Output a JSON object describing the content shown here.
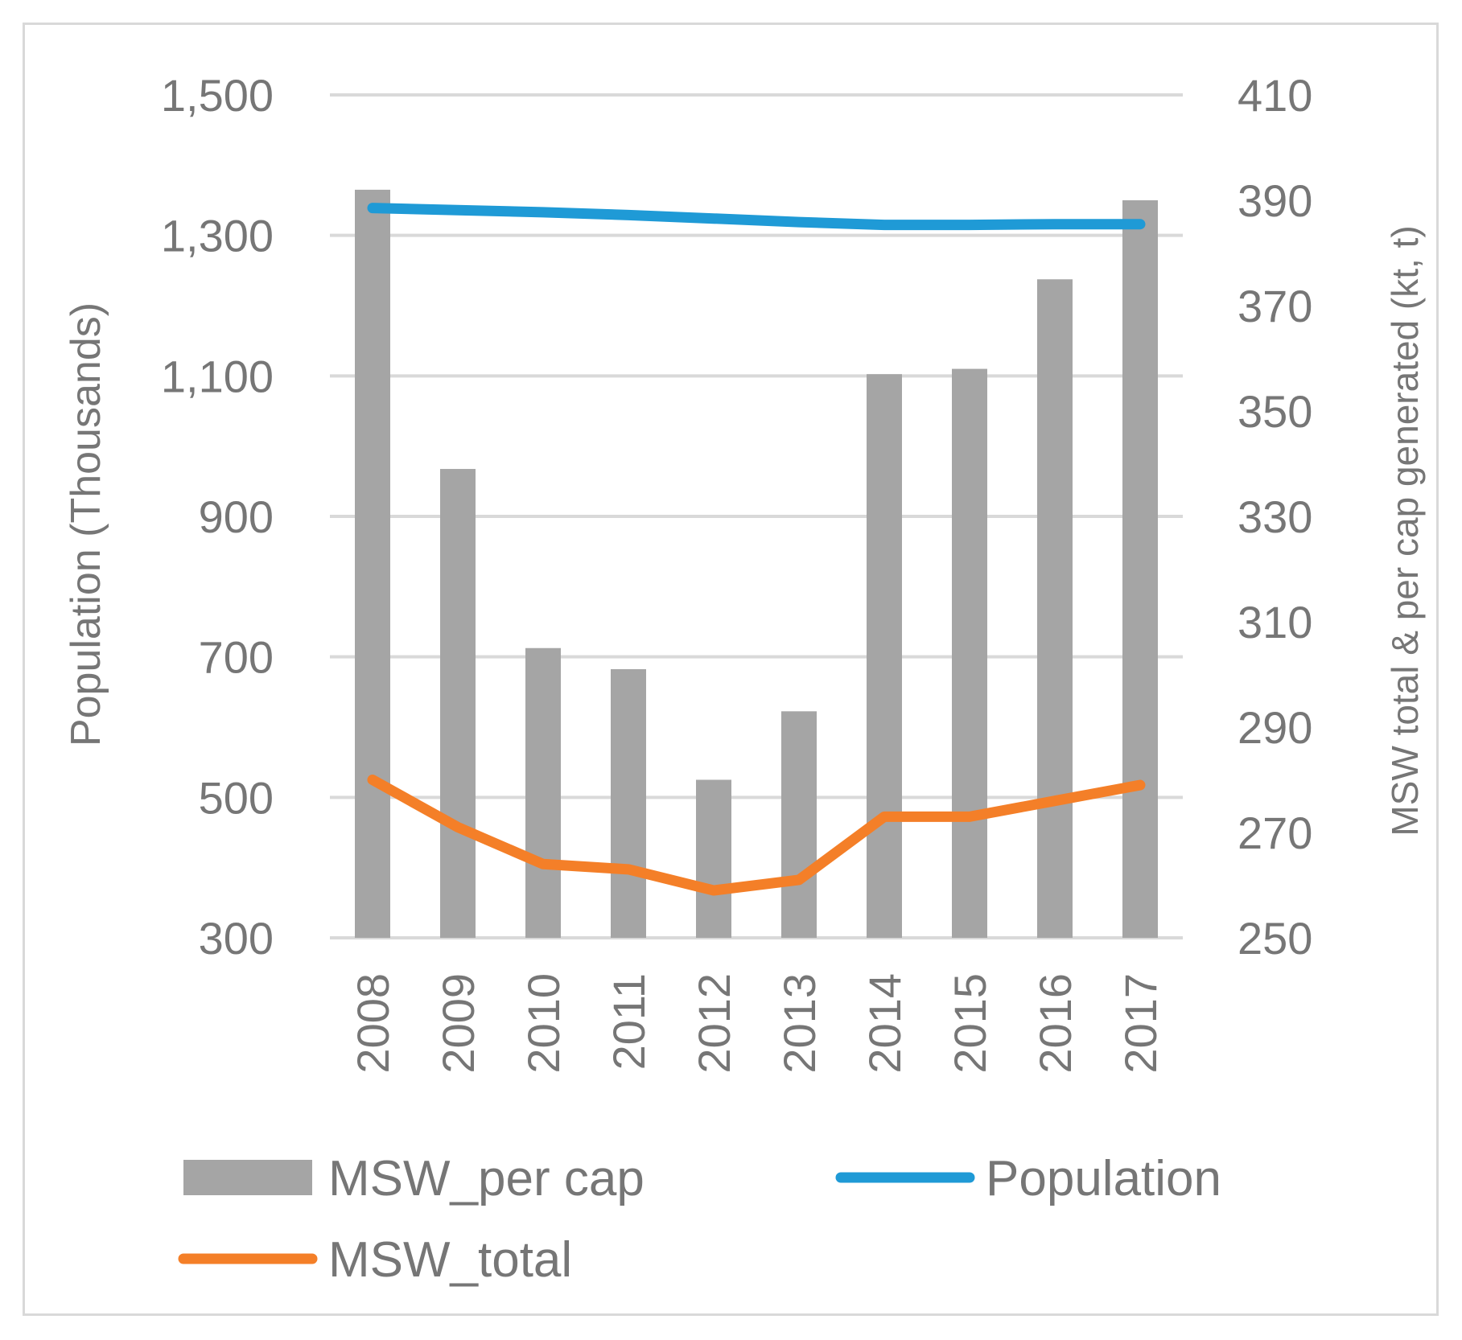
{
  "chart_data": {
    "type": "bar+line",
    "title": "",
    "categories": [
      "2008",
      "2009",
      "2010",
      "2011",
      "2012",
      "2013",
      "2014",
      "2015",
      "2016",
      "2017"
    ],
    "y_left": {
      "label": "Population (Thousands)",
      "ylim": [
        300,
        1500
      ],
      "ticks": [
        300,
        500,
        700,
        900,
        1100,
        1300,
        1500
      ],
      "tick_labels": [
        "300",
        "500",
        "700",
        "900",
        "1,100",
        "1,300",
        "1,500"
      ]
    },
    "y_right": {
      "label": "MSW total & per cap generated (kt, t)",
      "ylim": [
        250,
        410
      ],
      "ticks": [
        250,
        270,
        290,
        310,
        330,
        350,
        370,
        390,
        410
      ],
      "tick_labels": [
        "250",
        "270",
        "290",
        "310",
        "330",
        "350",
        "370",
        "390",
        "410"
      ]
    },
    "grid": true,
    "legend_position": "bottom",
    "series": [
      {
        "name": "MSW_per cap",
        "type": "bar",
        "axis": "right",
        "color": "#a5a5a5",
        "values": [
          392,
          339,
          305,
          301,
          280,
          293,
          357,
          358,
          375,
          390
        ]
      },
      {
        "name": "Population",
        "type": "line",
        "axis": "left",
        "color": "#1f9ad6",
        "values": [
          1339,
          1336,
          1333,
          1329,
          1324,
          1319,
          1315,
          1315,
          1316,
          1316
        ]
      },
      {
        "name": "MSW_total",
        "type": "line",
        "axis": "right",
        "color": "#f47f28",
        "values": [
          280,
          271,
          264,
          263,
          259,
          261,
          273,
          273,
          276,
          279
        ]
      }
    ]
  }
}
